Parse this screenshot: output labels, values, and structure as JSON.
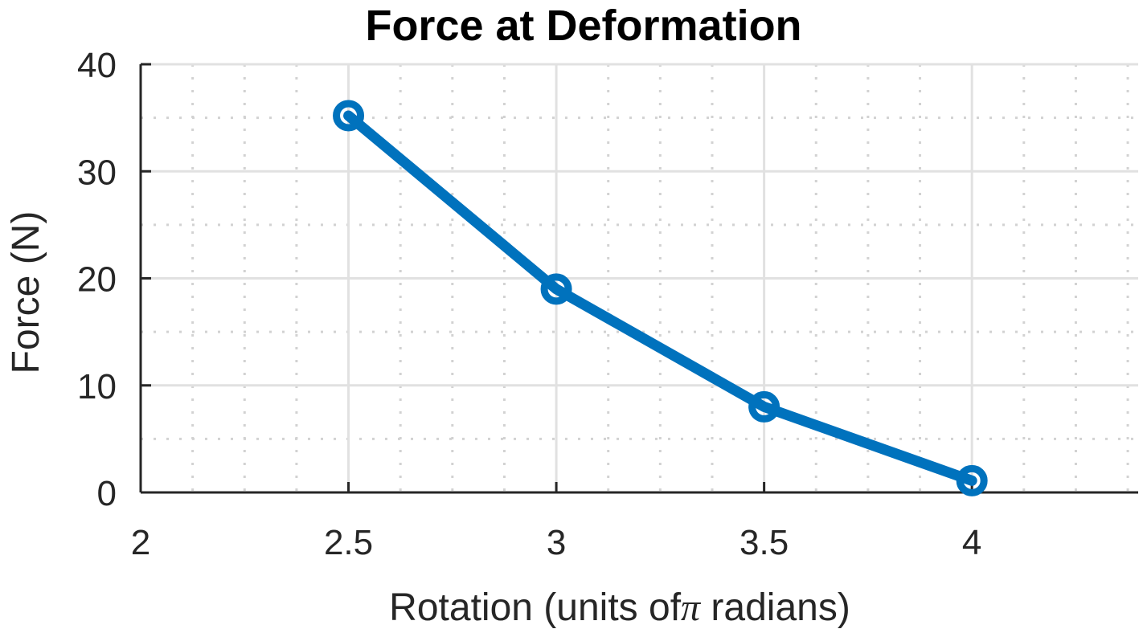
{
  "chart_data": {
    "type": "line",
    "title": "Force at Deformation",
    "xlabel_main": "Rotation (units of",
    "xlabel_symbol": "π",
    "xlabel_tail": " radians)",
    "ylabel": "Force (N)",
    "xlim": [
      2,
      4.4
    ],
    "ylim": [
      0,
      40
    ],
    "x_ticks": [
      2,
      2.5,
      3,
      3.5,
      4
    ],
    "x_tick_labels": [
      "2",
      "2.5",
      "3",
      "3.5",
      "4"
    ],
    "y_ticks": [
      0,
      10,
      20,
      30,
      40
    ],
    "y_tick_labels": [
      "0",
      "10",
      "20",
      "30",
      "40"
    ],
    "x_minor_step": 0.125,
    "y_minor_step": 5,
    "grid": true,
    "minor_grid": true,
    "series": [
      {
        "x": [
          2.5,
          3,
          3.5,
          4
        ],
        "y": [
          35.2,
          19,
          8,
          1.1
        ],
        "color": "#0072BD",
        "marker": "circle"
      }
    ]
  }
}
